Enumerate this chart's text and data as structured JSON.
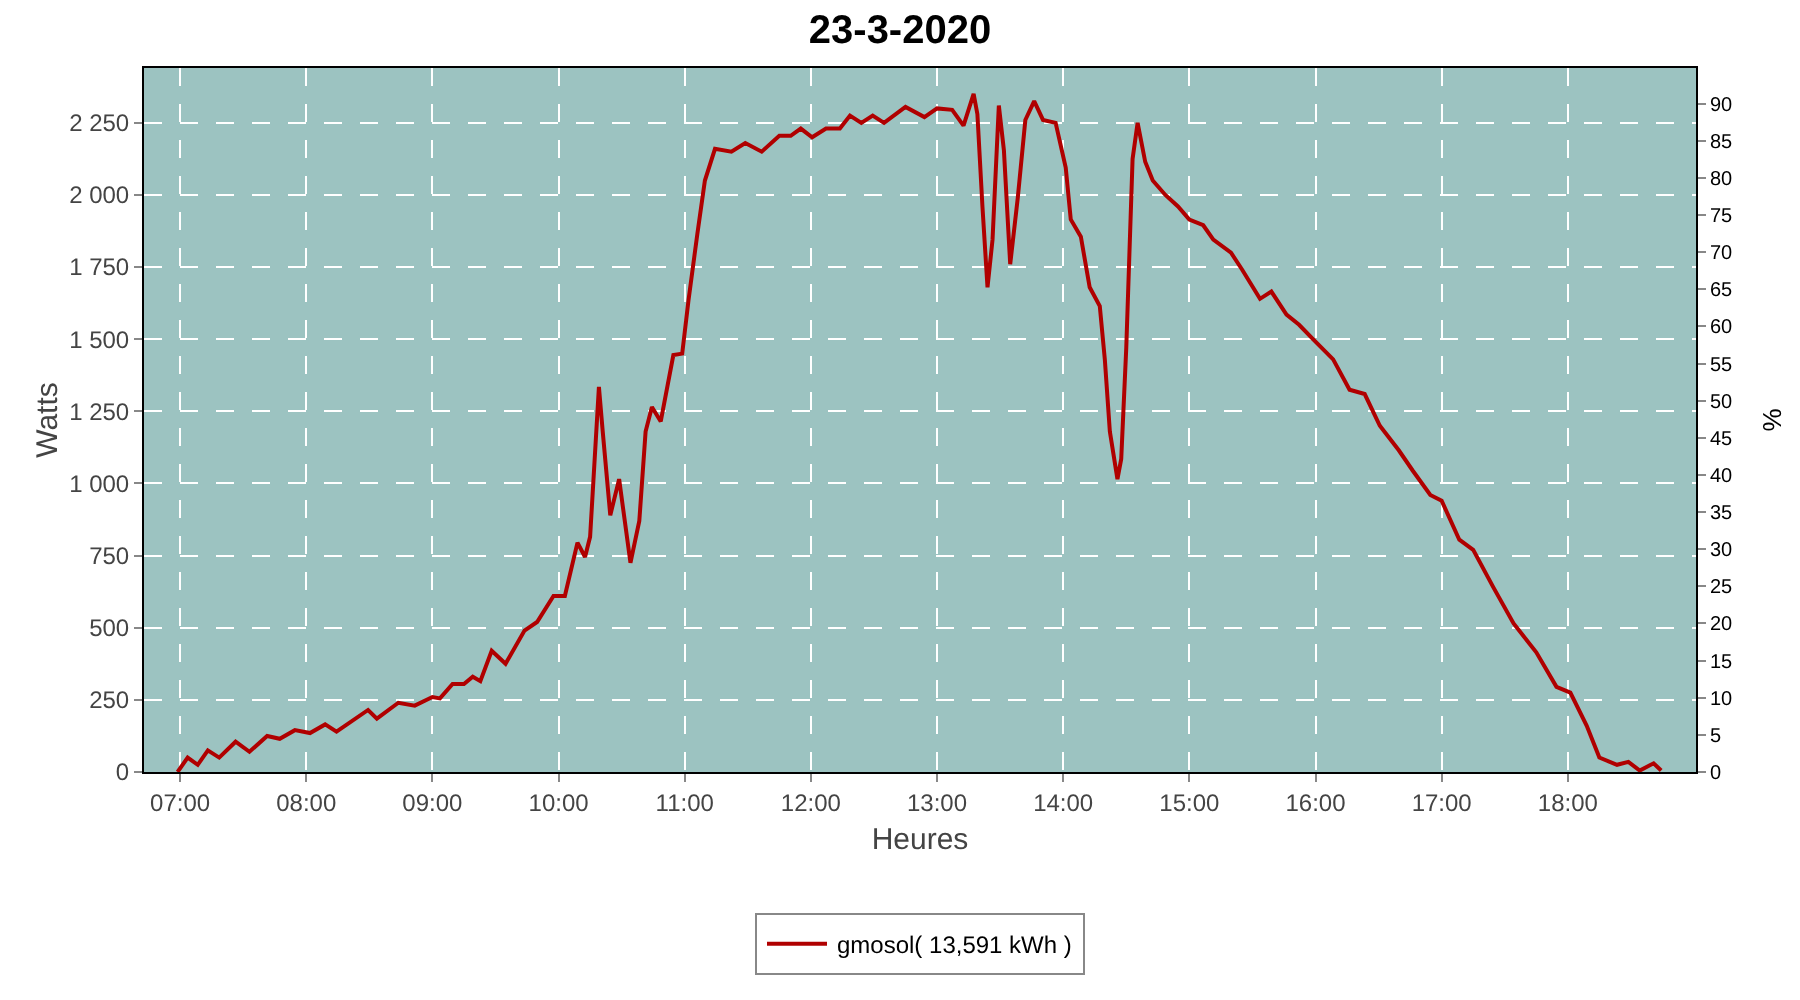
{
  "chart_data": {
    "type": "line",
    "title": "23-3-2020",
    "xlabel": "Heures",
    "ylabel": "Watts",
    "y2label": "%",
    "x": [
      6.98,
      7.06,
      7.14,
      7.22,
      7.31,
      7.44,
      7.55,
      7.69,
      7.79,
      7.91,
      8.03,
      8.15,
      8.24,
      8.49,
      8.56,
      8.73,
      8.86,
      9.0,
      9.06,
      9.16,
      9.25,
      9.32,
      9.38,
      9.47,
      9.58,
      9.73,
      9.83,
      9.96,
      10.05,
      10.15,
      10.21,
      10.25,
      10.32,
      10.35,
      10.41,
      10.48,
      10.57,
      10.64,
      10.69,
      10.74,
      10.81,
      10.91,
      10.98,
      11.03,
      11.1,
      11.16,
      11.24,
      11.37,
      11.48,
      11.61,
      11.75,
      11.84,
      11.92,
      12.01,
      12.12,
      12.23,
      12.31,
      12.4,
      12.49,
      12.58,
      12.75,
      12.9,
      13.0,
      13.12,
      13.21,
      13.29,
      13.32,
      13.36,
      13.4,
      13.44,
      13.49,
      13.53,
      13.58,
      13.64,
      13.7,
      13.77,
      13.84,
      13.94,
      14.02,
      14.06,
      14.14,
      14.21,
      14.29,
      14.33,
      14.37,
      14.43,
      14.46,
      14.5,
      14.55,
      14.59,
      14.65,
      14.71,
      14.81,
      14.91,
      15.0,
      15.11,
      15.19,
      15.33,
      15.42,
      15.56,
      15.65,
      15.77,
      15.87,
      15.98,
      16.14,
      16.27,
      16.39,
      16.51,
      16.66,
      16.77,
      16.91,
      17.0,
      17.14,
      17.25,
      17.41,
      17.57,
      17.75,
      17.91,
      18.02,
      18.15,
      18.25,
      18.39,
      18.48,
      18.57,
      18.68,
      18.74
    ],
    "series": [
      {
        "name": "gmosol( 13,591 kWh )",
        "color": "#b00000",
        "values": [
          0,
          50,
          25,
          75,
          50,
          105,
          70,
          125,
          115,
          145,
          135,
          165,
          140,
          215,
          185,
          240,
          230,
          260,
          255,
          305,
          305,
          330,
          315,
          420,
          375,
          490,
          520,
          610,
          610,
          795,
          745,
          815,
          1335,
          1180,
          890,
          1015,
          725,
          870,
          1180,
          1265,
          1215,
          1445,
          1450,
          1635,
          1865,
          2050,
          2160,
          2150,
          2180,
          2150,
          2205,
          2205,
          2230,
          2200,
          2230,
          2230,
          2275,
          2250,
          2275,
          2250,
          2305,
          2270,
          2300,
          2295,
          2240,
          2350,
          2280,
          1960,
          1680,
          1845,
          2310,
          2155,
          1760,
          1990,
          2260,
          2325,
          2260,
          2250,
          2095,
          1915,
          1855,
          1680,
          1615,
          1430,
          1180,
          1015,
          1085,
          1470,
          2125,
          2250,
          2115,
          2050,
          2000,
          1960,
          1915,
          1895,
          1845,
          1800,
          1740,
          1640,
          1665,
          1585,
          1550,
          1500,
          1430,
          1325,
          1310,
          1200,
          1115,
          1045,
          960,
          940,
          805,
          770,
          640,
          515,
          415,
          295,
          275,
          160,
          50,
          25,
          35,
          5,
          30,
          5
        ]
      }
    ],
    "xlim": [
      6.714,
      19.016
    ],
    "xticks": [
      {
        "value": 7,
        "label": "07:00"
      },
      {
        "value": 8,
        "label": "08:00"
      },
      {
        "value": 9,
        "label": "09:00"
      },
      {
        "value": 10,
        "label": "10:00"
      },
      {
        "value": 11,
        "label": "11:00"
      },
      {
        "value": 12,
        "label": "12:00"
      },
      {
        "value": 13,
        "label": "13:00"
      },
      {
        "value": 14,
        "label": "14:00"
      },
      {
        "value": 15,
        "label": "15:00"
      },
      {
        "value": 16,
        "label": "16:00"
      },
      {
        "value": 17,
        "label": "17:00"
      },
      {
        "value": 18,
        "label": "18:00"
      }
    ],
    "ylim": [
      0,
      2440
    ],
    "yticks": [
      0,
      250,
      500,
      750,
      {
        "value": 1000,
        "label": "1 000"
      },
      {
        "value": 1250,
        "label": "1 250"
      },
      {
        "value": 1500,
        "label": "1 500"
      },
      {
        "value": 1750,
        "label": "1 750"
      },
      {
        "value": 2000,
        "label": "2 000"
      },
      {
        "value": 2250,
        "label": "2 250"
      }
    ],
    "y2lim": [
      0,
      94.8
    ],
    "y2ticks": [
      0,
      5,
      10,
      15,
      20,
      25,
      30,
      35,
      40,
      45,
      50,
      55,
      60,
      65,
      70,
      75,
      80,
      85,
      90
    ],
    "grid": true,
    "legend": "bottom",
    "marker": "none",
    "line_style": "solid"
  }
}
